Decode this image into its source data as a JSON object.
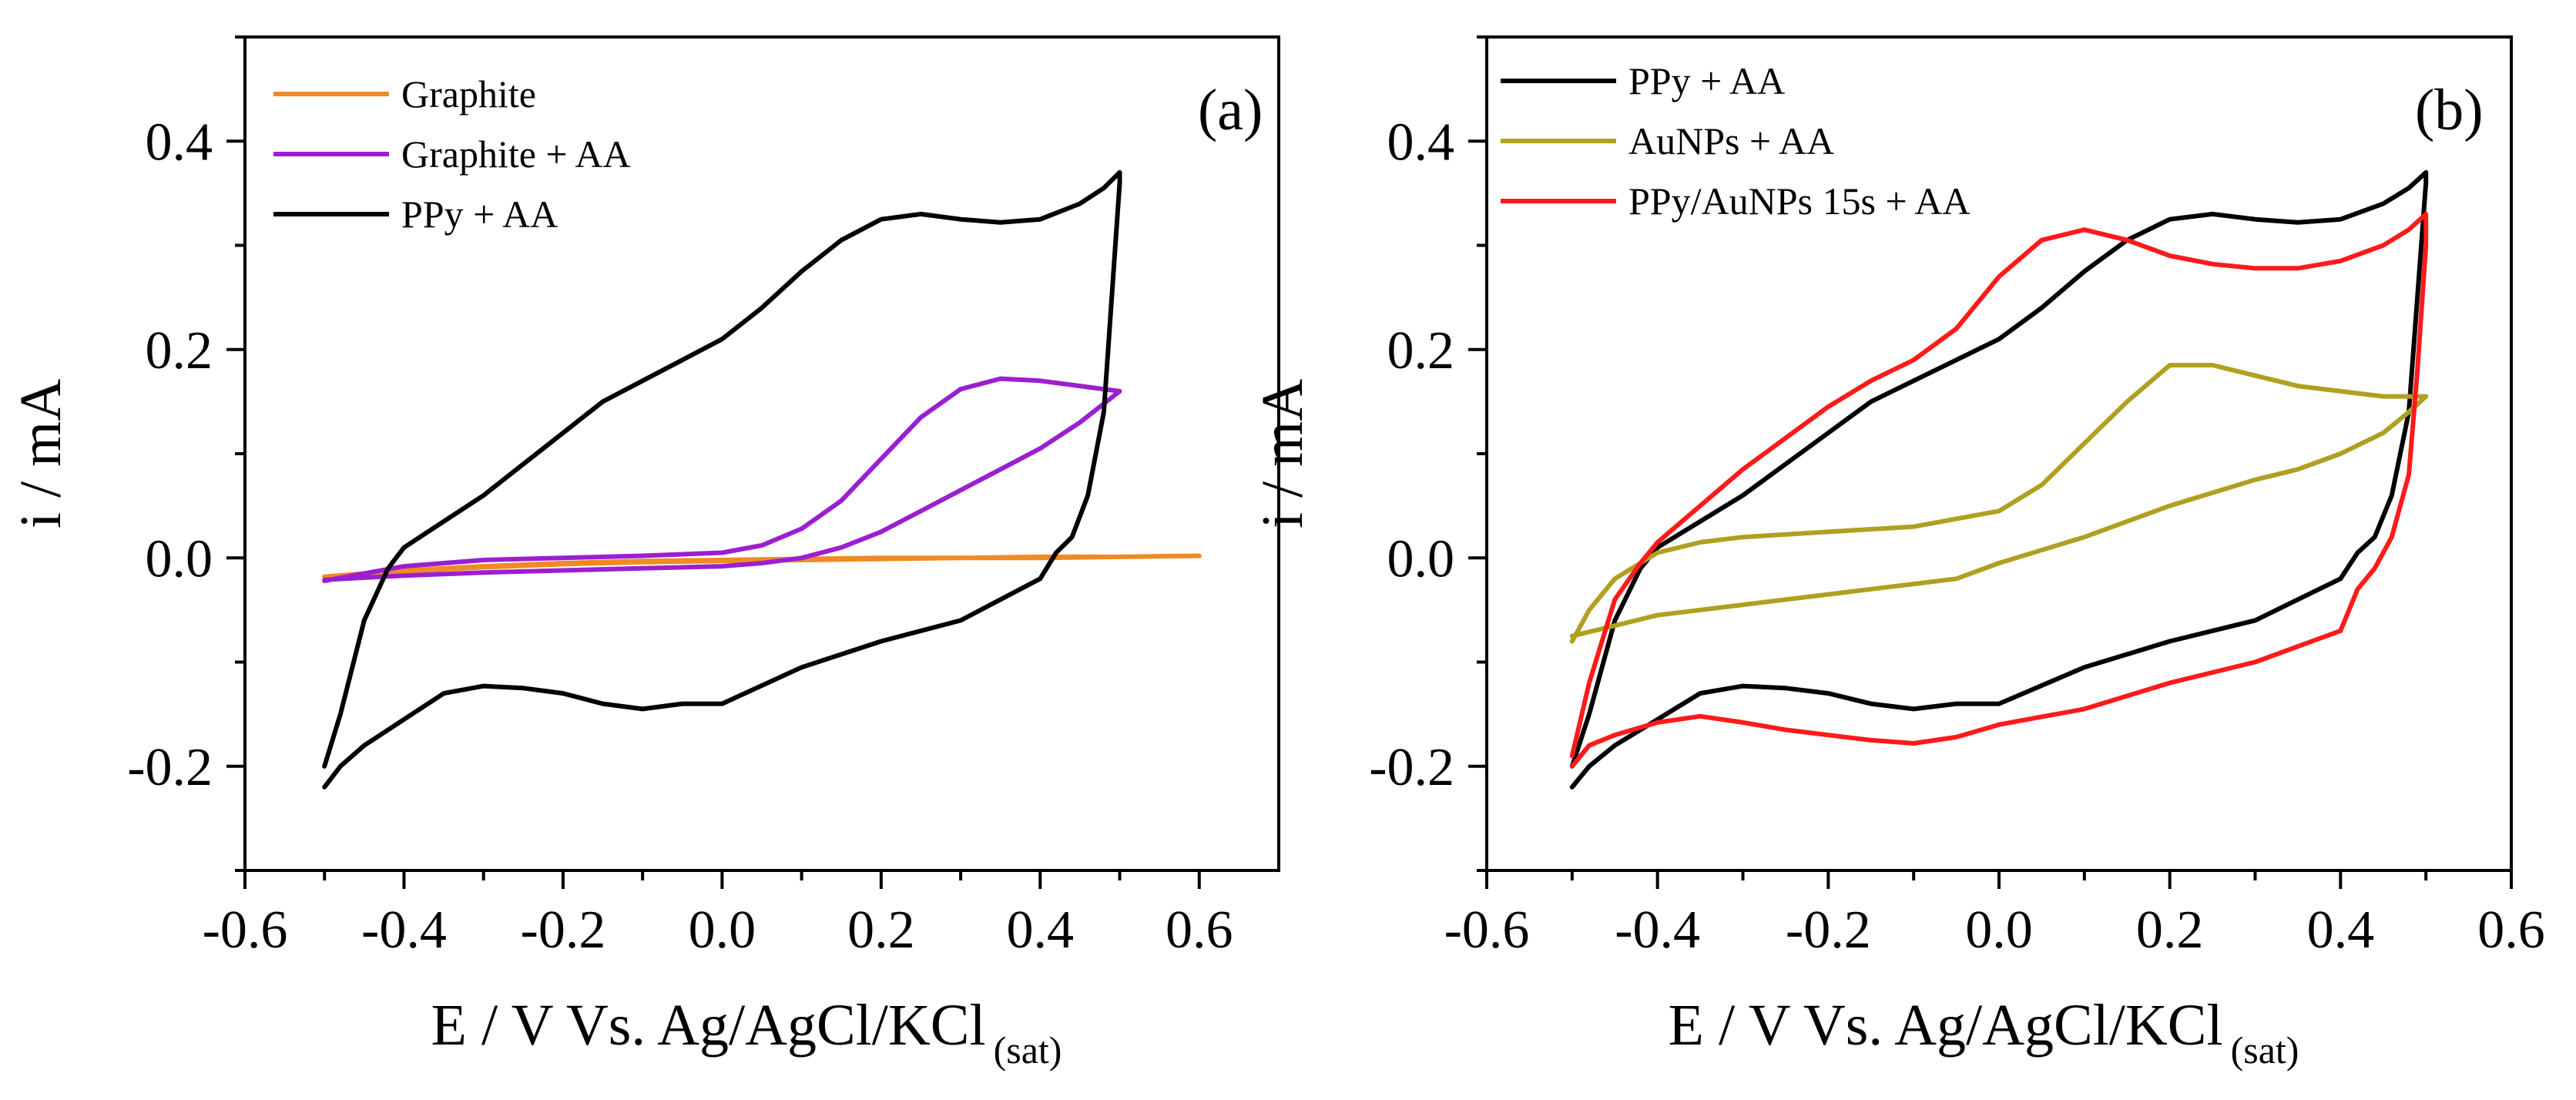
{
  "chart_data": [
    {
      "type": "line",
      "panel_label": "(a)",
      "xlabel": "E / V Vs. Ag/AgCl/KCl",
      "xlabel_subscript": "(sat)",
      "ylabel": "i / mA",
      "xlim": [
        -0.6,
        0.7
      ],
      "ylim": [
        -0.3,
        0.5
      ],
      "x_ticks": [
        -0.6,
        -0.4,
        -0.2,
        0.0,
        0.2,
        0.4,
        0.6
      ],
      "x_tick_labels": [
        "-0.6",
        "-0.4",
        "-0.2",
        "0.0",
        "0.2",
        "0.4",
        "0.6"
      ],
      "y_ticks": [
        -0.2,
        0.0,
        0.2,
        0.4
      ],
      "y_tick_labels": [
        "-0.2",
        "0.0",
        "0.2",
        "0.4"
      ],
      "legend_position": "top-left",
      "series": [
        {
          "name": "Graphite",
          "color": "#f08a24",
          "x": [
            -0.5,
            -0.4,
            -0.3,
            -0.2,
            -0.1,
            0.0,
            0.1,
            0.2,
            0.3,
            0.4,
            0.5,
            0.6,
            0.5,
            0.4,
            0.3,
            0.2,
            0.1,
            0.0,
            -0.1,
            -0.2,
            -0.3,
            -0.4,
            -0.5
          ],
          "y": [
            -0.018,
            -0.012,
            -0.008,
            -0.005,
            -0.003,
            -0.002,
            -0.001,
            0.0,
            0.0,
            0.001,
            0.001,
            0.002,
            0.001,
            0.0,
            0.0,
            -0.001,
            -0.002,
            -0.003,
            -0.004,
            -0.006,
            -0.009,
            -0.013,
            -0.018
          ]
        },
        {
          "name": "Graphite + AA",
          "color": "#9b1fd1",
          "x": [
            -0.5,
            -0.45,
            -0.4,
            -0.3,
            -0.2,
            -0.1,
            0.0,
            0.05,
            0.1,
            0.15,
            0.2,
            0.25,
            0.3,
            0.35,
            0.4,
            0.45,
            0.5,
            0.45,
            0.4,
            0.35,
            0.3,
            0.25,
            0.2,
            0.15,
            0.1,
            0.05,
            0.0,
            -0.1,
            -0.2,
            -0.3,
            -0.4,
            -0.45,
            -0.5
          ],
          "y": [
            -0.022,
            -0.015,
            -0.008,
            -0.002,
            0.0,
            0.002,
            0.005,
            0.012,
            0.028,
            0.055,
            0.095,
            0.135,
            0.162,
            0.172,
            0.17,
            0.165,
            0.16,
            0.13,
            0.105,
            0.085,
            0.065,
            0.045,
            0.025,
            0.01,
            0.0,
            -0.005,
            -0.008,
            -0.01,
            -0.012,
            -0.014,
            -0.017,
            -0.019,
            -0.021
          ]
        },
        {
          "name": "PPy + AA",
          "color": "#000000",
          "x": [
            -0.5,
            -0.48,
            -0.45,
            -0.42,
            -0.4,
            -0.35,
            -0.3,
            -0.25,
            -0.2,
            -0.15,
            -0.1,
            -0.05,
            0.0,
            0.05,
            0.1,
            0.15,
            0.2,
            0.25,
            0.3,
            0.35,
            0.4,
            0.45,
            0.48,
            0.5,
            0.5,
            0.49,
            0.48,
            0.46,
            0.44,
            0.42,
            0.4,
            0.35,
            0.3,
            0.2,
            0.1,
            0.0,
            -0.05,
            -0.1,
            -0.15,
            -0.2,
            -0.25,
            -0.3,
            -0.35,
            -0.4,
            -0.45,
            -0.48,
            -0.5
          ],
          "y": [
            -0.2,
            -0.15,
            -0.06,
            -0.01,
            0.01,
            0.035,
            0.06,
            0.09,
            0.12,
            0.15,
            0.17,
            0.19,
            0.21,
            0.24,
            0.275,
            0.305,
            0.325,
            0.33,
            0.325,
            0.322,
            0.325,
            0.34,
            0.355,
            0.37,
            0.36,
            0.25,
            0.14,
            0.06,
            0.02,
            0.005,
            -0.02,
            -0.04,
            -0.06,
            -0.08,
            -0.105,
            -0.14,
            -0.14,
            -0.145,
            -0.14,
            -0.13,
            -0.125,
            -0.123,
            -0.13,
            -0.155,
            -0.18,
            -0.2,
            -0.22
          ]
        }
      ]
    },
    {
      "type": "line",
      "panel_label": "(b)",
      "xlabel": "E / V Vs. Ag/AgCl/KCl",
      "xlabel_subscript": "(sat)",
      "ylabel": "i / mA",
      "xlim": [
        -0.6,
        0.6
      ],
      "ylim": [
        -0.3,
        0.5
      ],
      "x_ticks": [
        -0.6,
        -0.4,
        -0.2,
        0.0,
        0.2,
        0.4,
        0.6
      ],
      "x_tick_labels": [
        "-0.6",
        "-0.4",
        "-0.2",
        "0.0",
        "0.2",
        "0.4",
        "0.6"
      ],
      "y_ticks": [
        -0.2,
        0.0,
        0.2,
        0.4
      ],
      "y_tick_labels": [
        "-0.2",
        "0.0",
        "0.2",
        "0.4"
      ],
      "legend_position": "top-left",
      "series": [
        {
          "name": "PPy + AA",
          "color": "#000000",
          "x": [
            -0.5,
            -0.48,
            -0.45,
            -0.42,
            -0.4,
            -0.35,
            -0.3,
            -0.25,
            -0.2,
            -0.15,
            -0.1,
            -0.05,
            0.0,
            0.05,
            0.1,
            0.15,
            0.2,
            0.25,
            0.3,
            0.35,
            0.4,
            0.45,
            0.48,
            0.5,
            0.5,
            0.49,
            0.48,
            0.46,
            0.44,
            0.42,
            0.4,
            0.35,
            0.3,
            0.2,
            0.1,
            0.0,
            -0.05,
            -0.1,
            -0.15,
            -0.2,
            -0.25,
            -0.3,
            -0.35,
            -0.4,
            -0.45,
            -0.48,
            -0.5
          ],
          "y": [
            -0.2,
            -0.15,
            -0.06,
            -0.01,
            0.01,
            0.035,
            0.06,
            0.09,
            0.12,
            0.15,
            0.17,
            0.19,
            0.21,
            0.24,
            0.275,
            0.305,
            0.325,
            0.33,
            0.325,
            0.322,
            0.325,
            0.34,
            0.355,
            0.37,
            0.36,
            0.25,
            0.14,
            0.06,
            0.02,
            0.005,
            -0.02,
            -0.04,
            -0.06,
            -0.08,
            -0.105,
            -0.14,
            -0.14,
            -0.145,
            -0.14,
            -0.13,
            -0.125,
            -0.123,
            -0.13,
            -0.155,
            -0.18,
            -0.2,
            -0.22
          ]
        },
        {
          "name": "AuNPs + AA",
          "color": "#b0a020",
          "x": [
            -0.5,
            -0.48,
            -0.45,
            -0.4,
            -0.35,
            -0.3,
            -0.2,
            -0.1,
            0.0,
            0.05,
            0.1,
            0.15,
            0.2,
            0.25,
            0.3,
            0.35,
            0.4,
            0.45,
            0.5,
            0.48,
            0.45,
            0.4,
            0.35,
            0.3,
            0.2,
            0.1,
            0.0,
            -0.05,
            -0.1,
            -0.15,
            -0.2,
            -0.3,
            -0.4,
            -0.45,
            -0.5
          ],
          "y": [
            -0.08,
            -0.05,
            -0.02,
            0.005,
            0.015,
            0.02,
            0.025,
            0.03,
            0.045,
            0.07,
            0.11,
            0.15,
            0.185,
            0.185,
            0.175,
            0.165,
            0.16,
            0.155,
            0.155,
            0.14,
            0.12,
            0.1,
            0.085,
            0.075,
            0.05,
            0.02,
            -0.005,
            -0.02,
            -0.025,
            -0.03,
            -0.035,
            -0.045,
            -0.055,
            -0.065,
            -0.075
          ]
        },
        {
          "name": "PPy/AuNPs 15s + AA",
          "color": "#ff1a1a",
          "x": [
            -0.5,
            -0.48,
            -0.45,
            -0.42,
            -0.4,
            -0.35,
            -0.3,
            -0.25,
            -0.2,
            -0.15,
            -0.1,
            -0.05,
            0.0,
            0.05,
            0.1,
            0.15,
            0.2,
            0.25,
            0.3,
            0.35,
            0.4,
            0.45,
            0.48,
            0.5,
            0.5,
            0.49,
            0.48,
            0.46,
            0.44,
            0.42,
            0.4,
            0.35,
            0.3,
            0.2,
            0.1,
            0.0,
            -0.05,
            -0.1,
            -0.15,
            -0.2,
            -0.25,
            -0.3,
            -0.35,
            -0.4,
            -0.45,
            -0.48,
            -0.5
          ],
          "y": [
            -0.19,
            -0.12,
            -0.04,
            -0.005,
            0.015,
            0.05,
            0.085,
            0.115,
            0.145,
            0.17,
            0.19,
            0.22,
            0.27,
            0.305,
            0.315,
            0.305,
            0.29,
            0.282,
            0.278,
            0.278,
            0.285,
            0.3,
            0.315,
            0.33,
            0.3,
            0.18,
            0.08,
            0.02,
            -0.01,
            -0.03,
            -0.07,
            -0.085,
            -0.1,
            -0.12,
            -0.145,
            -0.16,
            -0.172,
            -0.178,
            -0.175,
            -0.17,
            -0.165,
            -0.158,
            -0.152,
            -0.158,
            -0.17,
            -0.18,
            -0.2
          ]
        }
      ]
    }
  ]
}
